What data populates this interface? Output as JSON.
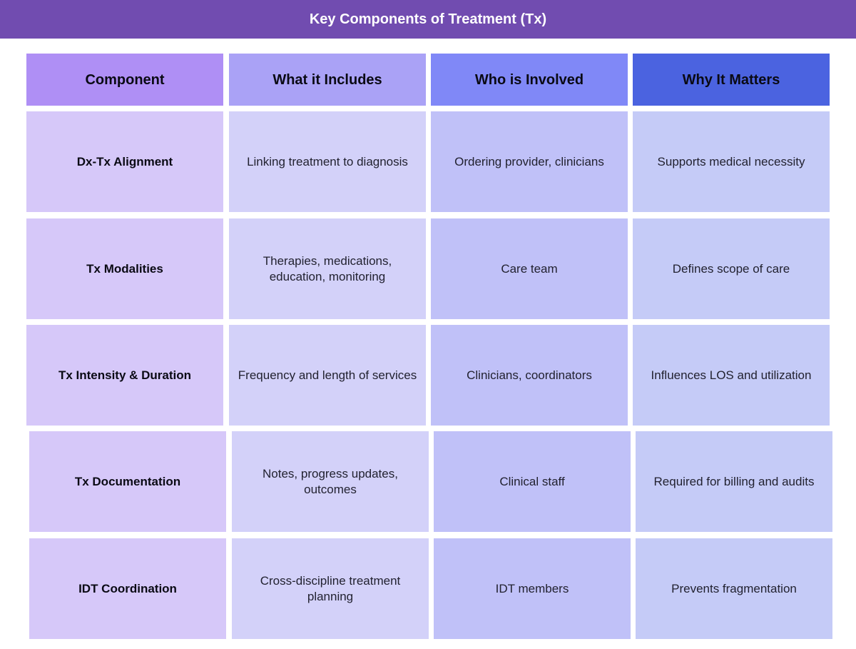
{
  "title": "Key Components of Treatment (Tx)",
  "colors": {
    "title_bar": "#714cb0",
    "headers": [
      "#af8ff5",
      "#aaa2f6",
      "#8088f7",
      "#4b63e0"
    ],
    "columns": [
      "#d6c8f9",
      "#d3d1f9",
      "#c0c1f8",
      "#c5cbf7"
    ]
  },
  "table": {
    "headers": [
      "Component",
      "What it Includes",
      "Who is Involved",
      "Why It Matters"
    ],
    "rows": [
      [
        "Dx-Tx Alignment",
        "Linking treatment to diagnosis",
        "Ordering provider, clinicians",
        "Supports medical necessity"
      ],
      [
        "Tx Modalities",
        "Therapies, medications, education, monitoring",
        "Care team",
        "Defines scope of care"
      ],
      [
        "Tx Intensity & Duration",
        "Frequency and length of services",
        "Clinicians, coordinators",
        "Influences LOS and utilization"
      ],
      [
        "Tx Documentation",
        "Notes, progress updates, outcomes",
        "Clinical staff",
        "Required for billing and audits"
      ],
      [
        "IDT Coordination",
        "Cross-discipline treatment planning",
        "IDT members",
        "Prevents fragmentation"
      ]
    ]
  }
}
